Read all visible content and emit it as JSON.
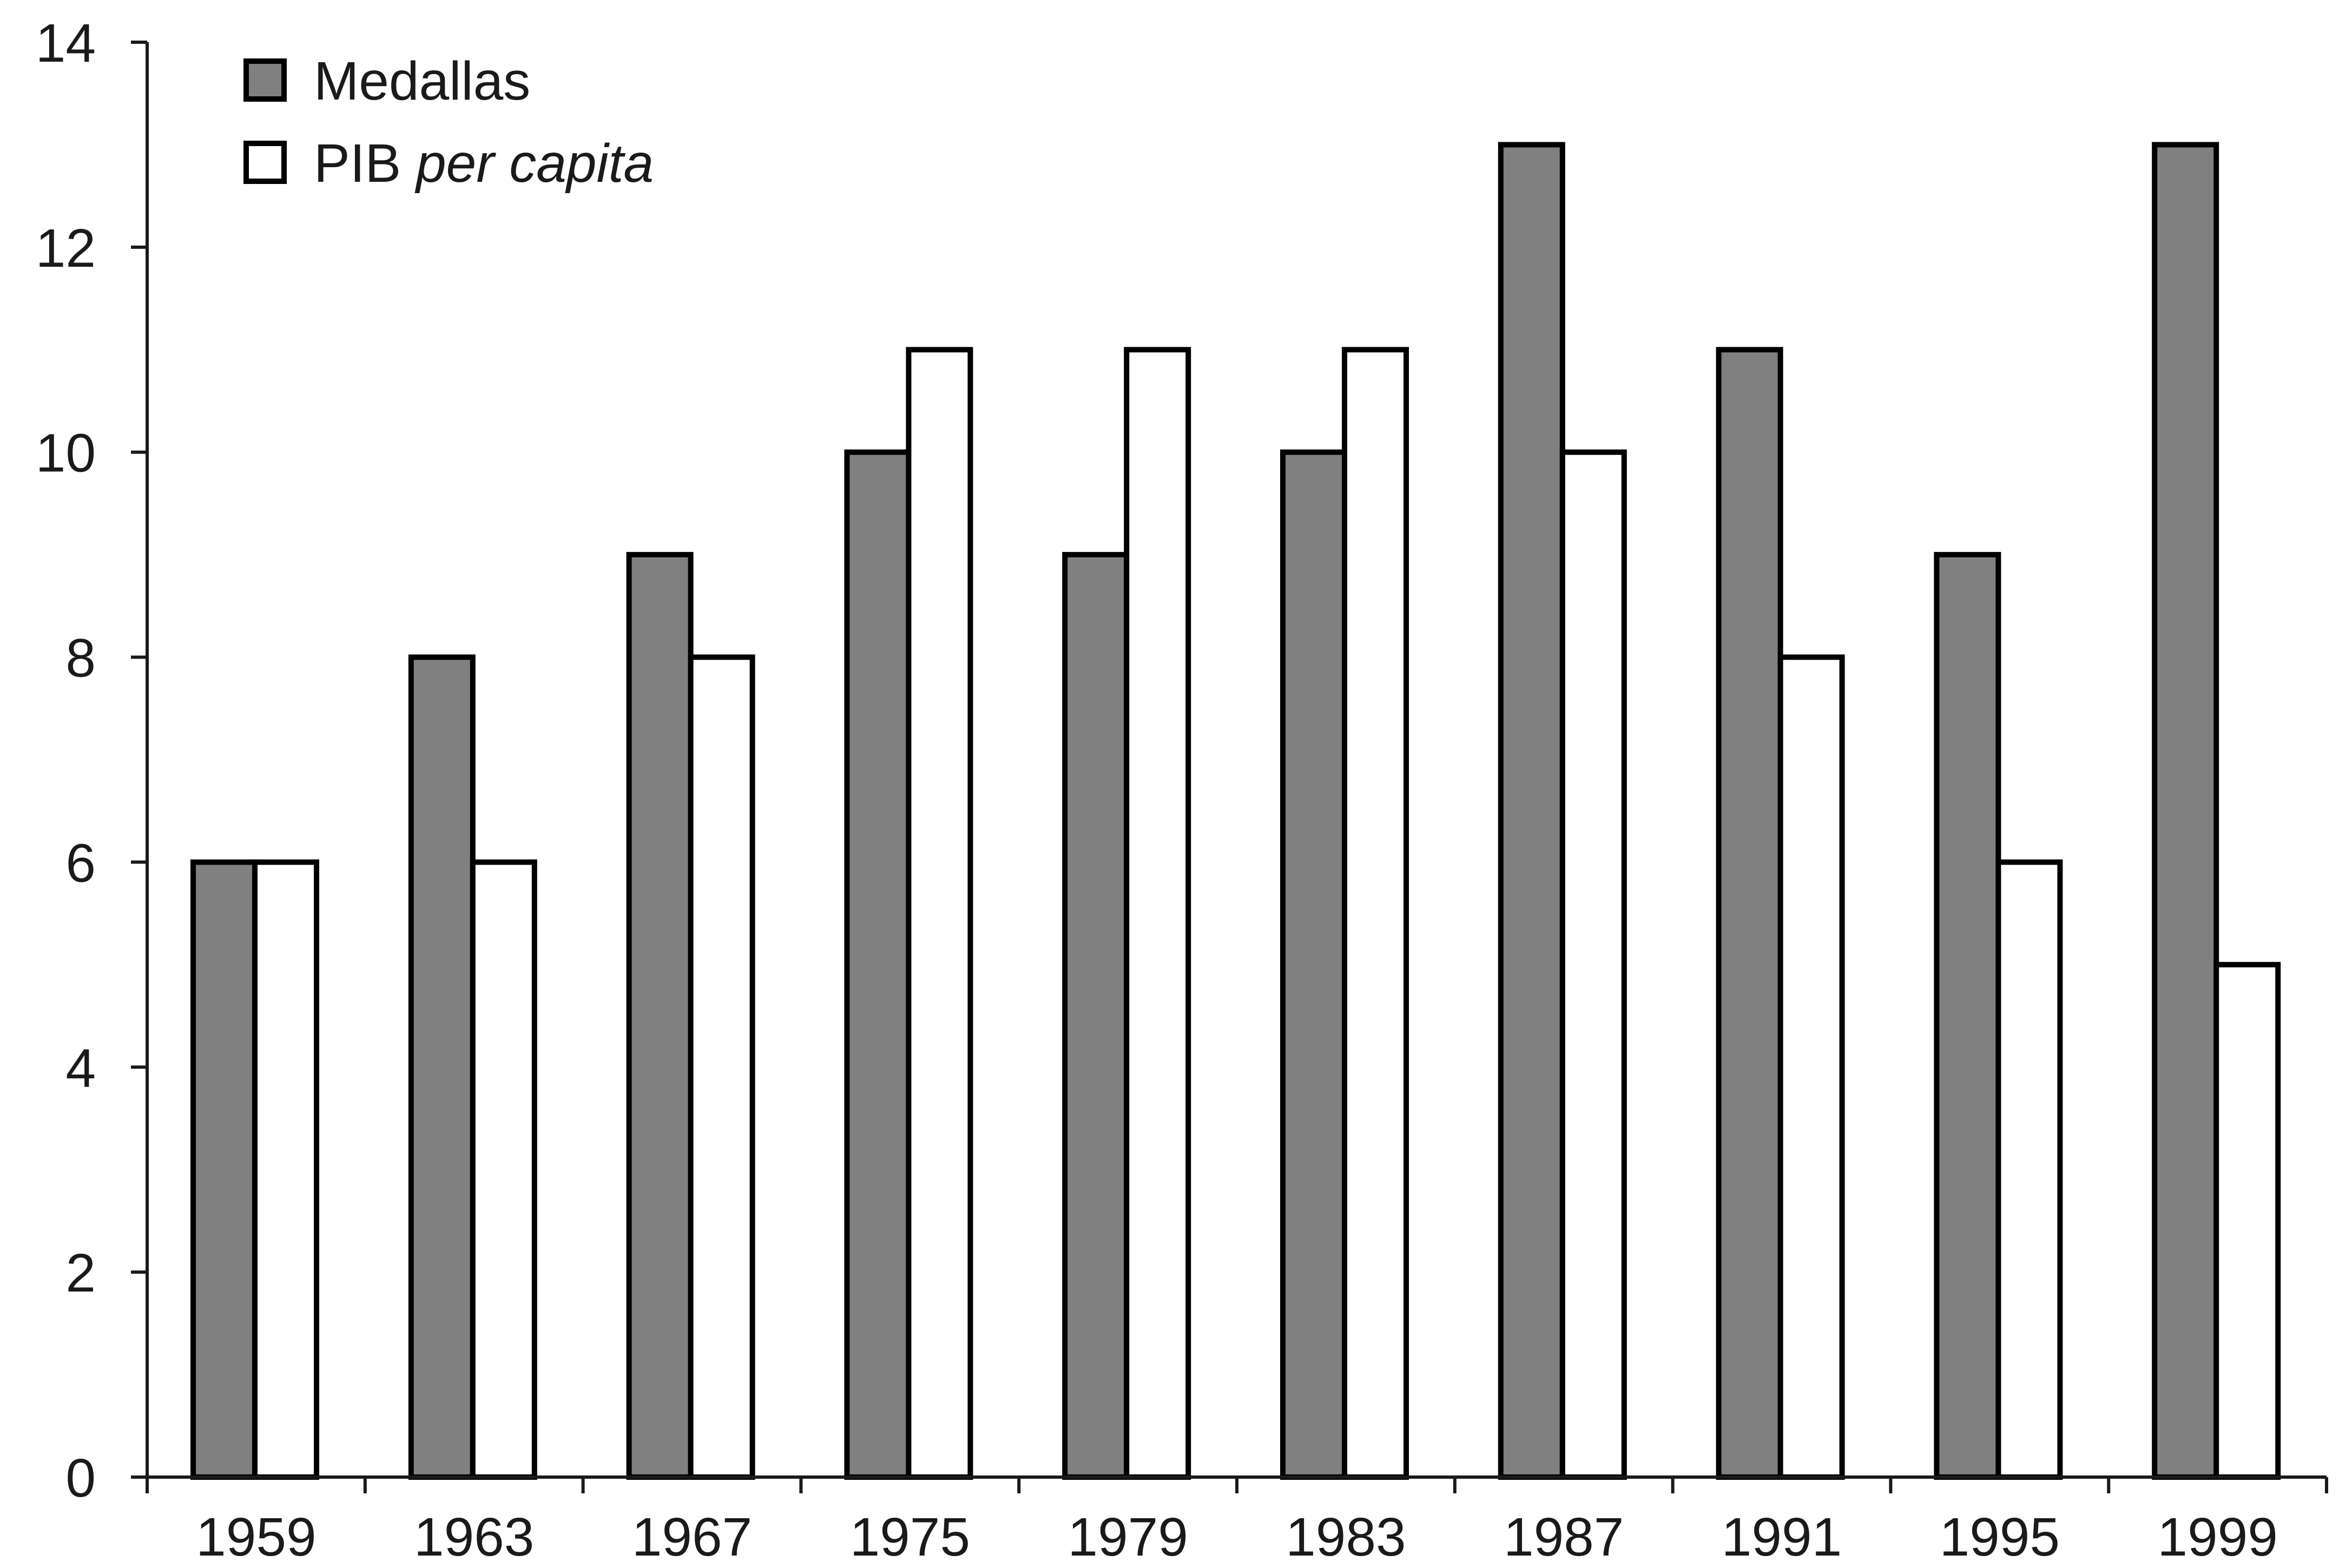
{
  "chart_data": {
    "type": "bar",
    "categories": [
      "1959",
      "1963",
      "1967",
      "1975",
      "1979",
      "1983",
      "1987",
      "1991",
      "1995",
      "1999"
    ],
    "series": [
      {
        "name": "Medallas",
        "color": "#808080",
        "values": [
          6,
          8,
          9,
          10,
          9,
          10,
          13,
          11,
          9,
          13
        ]
      },
      {
        "name": "PIB per capita",
        "color": "#ffffff",
        "values": [
          6,
          6,
          8,
          11,
          11,
          11,
          10,
          8,
          6,
          5
        ]
      }
    ],
    "legend": {
      "position": "top-left",
      "entries": [
        {
          "text": "Medallas",
          "italic_part": ""
        },
        {
          "text": "PIB ",
          "italic_part": "per capita"
        }
      ]
    },
    "yticks": [
      "0",
      "2",
      "4",
      "6",
      "8",
      "10",
      "12",
      "14"
    ],
    "ylim": [
      0,
      14
    ],
    "grid": false,
    "title": "",
    "xlabel": "",
    "ylabel": ""
  }
}
